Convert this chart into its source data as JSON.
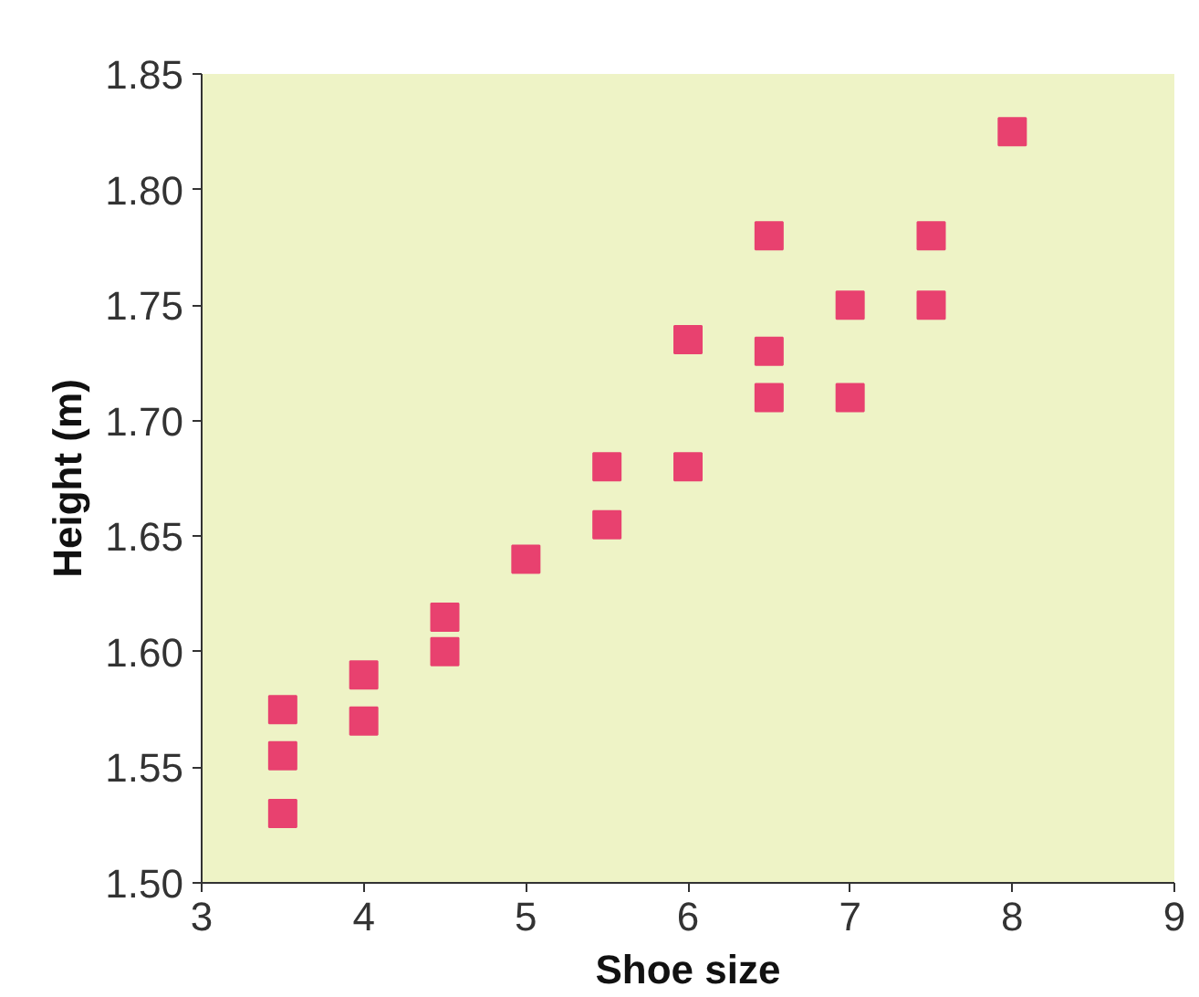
{
  "chart_data": {
    "type": "scatter",
    "xlabel": "Shoe size",
    "ylabel": "Height (m)",
    "x": [
      3.5,
      3.5,
      3.5,
      4,
      4,
      4.5,
      4.5,
      5,
      5.5,
      5.5,
      6,
      6,
      6.5,
      6.5,
      6.5,
      7,
      7,
      7.5,
      7.5,
      8
    ],
    "series": [
      {
        "color": "#e8416f",
        "values": [
          1.575,
          1.555,
          1.53,
          1.59,
          1.57,
          1.615,
          1.6,
          1.64,
          1.68,
          1.655,
          1.735,
          1.68,
          1.78,
          1.73,
          1.71,
          1.75,
          1.71,
          1.78,
          1.75,
          1.825
        ]
      }
    ],
    "marker": "square",
    "grid": false,
    "xlim": [
      3,
      9
    ],
    "xticks": [
      3,
      4,
      5,
      6,
      7,
      8,
      9
    ],
    "ylim": [
      1.5,
      1.85
    ],
    "yticks": [
      {
        "value": 1.5,
        "label": "1.50"
      },
      {
        "value": 1.55,
        "label": "1.55"
      },
      {
        "value": 1.6,
        "label": "1.60"
      },
      {
        "value": 1.65,
        "label": "1.65"
      },
      {
        "value": 1.7,
        "label": "1.70"
      },
      {
        "value": 1.75,
        "label": "1.75"
      },
      {
        "value": 1.8,
        "label": "1.80"
      },
      {
        "value": 1.85,
        "label": "1.85"
      }
    ]
  }
}
